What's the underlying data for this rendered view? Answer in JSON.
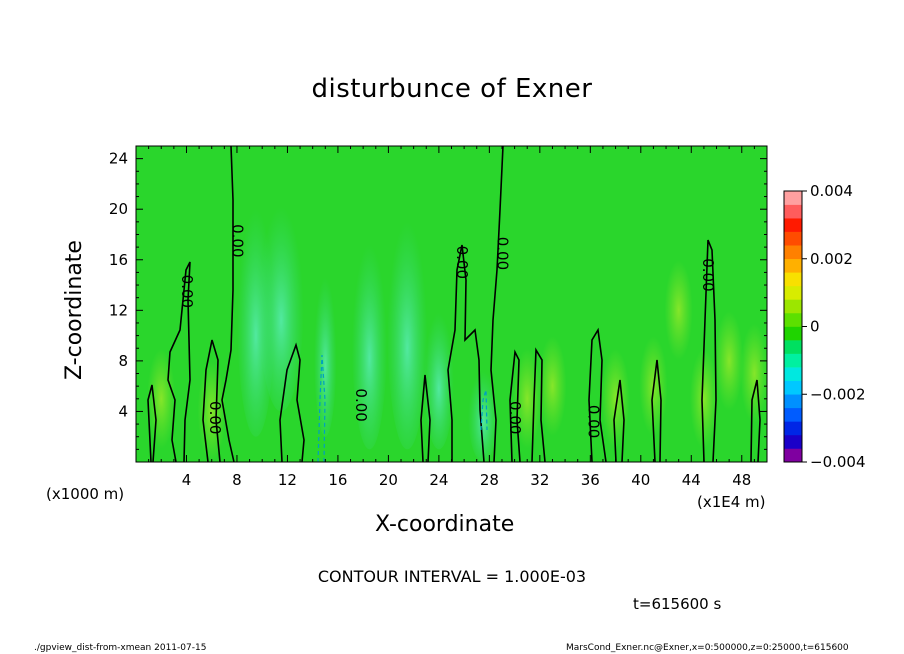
{
  "chart_data": {
    "type": "heatmap",
    "title": "disturbunce of Exner",
    "xlabel": "X-coordinate",
    "ylabel": "Z-coordinate",
    "x_unit_label": "(x1000 m)",
    "x_unit_label_2": "(x1E4 m)",
    "xlim": [
      0,
      50
    ],
    "ylim": [
      0,
      25
    ],
    "xticks": [
      "4",
      "8",
      "12",
      "16",
      "20",
      "24",
      "28",
      "32",
      "36",
      "40",
      "44",
      "48"
    ],
    "yticks": [
      "4",
      "8",
      "12",
      "16",
      "20",
      "24"
    ],
    "colorbar": {
      "ticks": [
        "0.004",
        "0.002",
        "0",
        "−0.002",
        "−0.004"
      ],
      "range": [
        -0.004,
        0.004
      ],
      "colors": [
        "#7f00a0",
        "#1a00c8",
        "#0026e6",
        "#005cff",
        "#0090ff",
        "#00c8ff",
        "#00e8e0",
        "#00f0a0",
        "#00e060",
        "#1fd400",
        "#5ce000",
        "#9ce600",
        "#d8ec00",
        "#f8e000",
        "#ffb000",
        "#ff8000",
        "#ff4c00",
        "#ff1a00",
        "#ff5c5c",
        "#ffa0a0"
      ]
    },
    "contour_labels": [
      {
        "x": 4,
        "z": 13.5,
        "text": "0.00"
      },
      {
        "x": 6.2,
        "z": 3.5,
        "text": "0.00"
      },
      {
        "x": 8,
        "z": 17.5,
        "text": "0.00"
      },
      {
        "x": 17.8,
        "z": 4.5,
        "text": "0.00"
      },
      {
        "x": 25.8,
        "z": 15.8,
        "text": "0.00"
      },
      {
        "x": 29,
        "z": 16.5,
        "text": "0.00"
      },
      {
        "x": 30,
        "z": 3.5,
        "text": "0.00"
      },
      {
        "x": 36.2,
        "z": 3.2,
        "text": "0.00"
      },
      {
        "x": 45.3,
        "z": 14.8,
        "text": "0.00"
      }
    ],
    "contour_interval": "CONTOUR INTERVAL = 1.000E-03",
    "time": "t=615600 s"
  },
  "footer": {
    "left": "./gpview_dist-from-xmean  2011-07-15",
    "right": "MarsCond_Exner.nc@Exner,x=0:500000,z=0:25000,t=615600"
  }
}
